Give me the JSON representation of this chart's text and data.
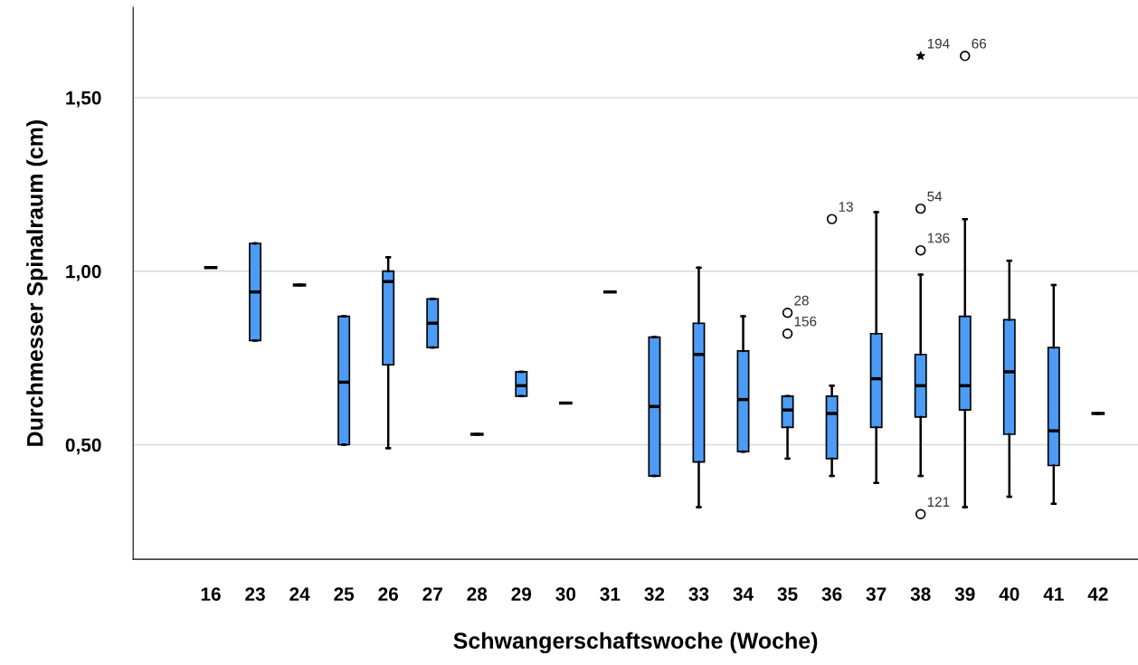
{
  "chart_data": {
    "type": "box",
    "xlabel": "Schwangerschaftswoche (Woche)",
    "ylabel": "Durchmesser Spinalraum (cm)",
    "categories": [
      "16",
      "23",
      "24",
      "25",
      "26",
      "27",
      "28",
      "29",
      "30",
      "31",
      "32",
      "33",
      "34",
      "35",
      "36",
      "37",
      "38",
      "39",
      "40",
      "41",
      "42"
    ],
    "ylim": [
      0.17,
      1.76
    ],
    "yticks": [
      {
        "value": 0.5,
        "label": "0,50"
      },
      {
        "value": 1.0,
        "label": "1,00"
      },
      {
        "value": 1.5,
        "label": "1,50"
      }
    ],
    "grid": "y",
    "colors": [
      "#000000",
      "#4c9bf5",
      "#000000",
      "#4c9bf5",
      "#4c9bf5",
      "#4c9bf5",
      "#000000",
      "#4c9bf5",
      "#000000",
      "#000000",
      "#4c9bf5",
      "#4c9bf5",
      "#4c9bf5",
      "#4c9bf5",
      "#4c9bf5",
      "#4c9bf5",
      "#4c9bf5",
      "#4c9bf5",
      "#4c9bf5",
      "#4c9bf5",
      "#000000"
    ],
    "boxes": [
      {
        "low": 1.01,
        "q1": 1.01,
        "median": 1.01,
        "q3": 1.01,
        "high": 1.01
      },
      {
        "low": 0.8,
        "q1": 0.8,
        "median": 0.94,
        "q3": 1.08,
        "high": 1.08
      },
      {
        "low": 0.96,
        "q1": 0.96,
        "median": 0.96,
        "q3": 0.96,
        "high": 0.96
      },
      {
        "low": 0.5,
        "q1": 0.5,
        "median": 0.68,
        "q3": 0.87,
        "high": 0.87
      },
      {
        "low": 0.49,
        "q1": 0.73,
        "median": 0.97,
        "q3": 1.0,
        "high": 1.04
      },
      {
        "low": 0.78,
        "q1": 0.78,
        "median": 0.85,
        "q3": 0.92,
        "high": 0.92
      },
      {
        "low": 0.53,
        "q1": 0.53,
        "median": 0.53,
        "q3": 0.53,
        "high": 0.53
      },
      {
        "low": 0.64,
        "q1": 0.64,
        "median": 0.67,
        "q3": 0.71,
        "high": 0.71
      },
      {
        "low": 0.62,
        "q1": 0.62,
        "median": 0.62,
        "q3": 0.62,
        "high": 0.62
      },
      {
        "low": 0.94,
        "q1": 0.94,
        "median": 0.94,
        "q3": 0.94,
        "high": 0.94
      },
      {
        "low": 0.41,
        "q1": 0.41,
        "median": 0.61,
        "q3": 0.81,
        "high": 0.81
      },
      {
        "low": 0.32,
        "q1": 0.45,
        "median": 0.76,
        "q3": 0.85,
        "high": 1.01
      },
      {
        "low": 0.48,
        "q1": 0.48,
        "median": 0.63,
        "q3": 0.77,
        "high": 0.87
      },
      {
        "low": 0.46,
        "q1": 0.55,
        "median": 0.6,
        "q3": 0.64,
        "high": 0.64
      },
      {
        "low": 0.41,
        "q1": 0.46,
        "median": 0.59,
        "q3": 0.64,
        "high": 0.67
      },
      {
        "low": 0.39,
        "q1": 0.55,
        "median": 0.69,
        "q3": 0.82,
        "high": 1.17
      },
      {
        "low": 0.41,
        "q1": 0.58,
        "median": 0.67,
        "q3": 0.76,
        "high": 0.99
      },
      {
        "low": 0.32,
        "q1": 0.6,
        "median": 0.67,
        "q3": 0.87,
        "high": 1.15
      },
      {
        "low": 0.35,
        "q1": 0.53,
        "median": 0.71,
        "q3": 0.86,
        "high": 1.03
      },
      {
        "low": 0.33,
        "q1": 0.44,
        "median": 0.54,
        "q3": 0.78,
        "high": 0.96
      },
      {
        "low": 0.59,
        "q1": 0.59,
        "median": 0.59,
        "q3": 0.59,
        "high": 0.59
      }
    ],
    "series": [
      {
        "type": "scatter",
        "marker": "star",
        "color": "#000000",
        "x": [
          "38"
        ],
        "values": [
          1.62
        ]
      },
      {
        "type": "scatter",
        "marker": "circle",
        "color": "#000000",
        "x": [
          "35",
          "35",
          "36",
          "38",
          "38",
          "38",
          "39"
        ],
        "values": [
          0.88,
          0.82,
          1.15,
          1.18,
          1.06,
          0.3,
          1.62
        ]
      }
    ],
    "annotations": [
      {
        "text": "194",
        "x": "38",
        "y": 1.62
      },
      {
        "text": "66",
        "x": "39",
        "y": 1.62
      },
      {
        "text": "13",
        "x": "36",
        "y": 1.15
      },
      {
        "text": "54",
        "x": "38",
        "y": 1.18
      },
      {
        "text": "136",
        "x": "38",
        "y": 1.06
      },
      {
        "text": "28",
        "x": "35",
        "y": 0.88
      },
      {
        "text": "156",
        "x": "35",
        "y": 0.82
      },
      {
        "text": "121",
        "x": "38",
        "y": 0.3
      }
    ]
  }
}
